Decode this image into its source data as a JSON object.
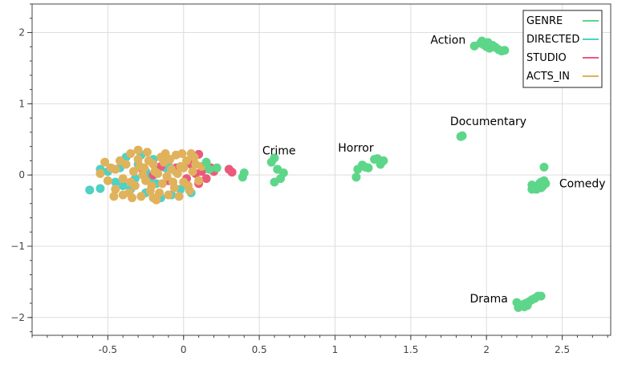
{
  "chart_data": {
    "type": "scatter",
    "title": "",
    "xlabel": "",
    "ylabel": "",
    "xlim": [
      -1.0,
      2.82
    ],
    "ylim": [
      -2.25,
      2.4
    ],
    "grid": true,
    "legend_position": "top-right",
    "x_ticks": [
      -0.5,
      0,
      0.5,
      1,
      1.5,
      2,
      2.5
    ],
    "x_tick_labels": [
      "-0.5",
      "0",
      "0.5",
      "1",
      "1.5",
      "2",
      "2.5"
    ],
    "y_ticks": [
      2,
      1,
      0,
      -1,
      -2
    ],
    "y_tick_labels": [
      "2",
      "1",
      "0",
      "−1",
      "−2"
    ],
    "series": [
      {
        "name": "DIRECTED",
        "color": "#4fd1c5",
        "points": [
          [
            -0.62,
            -0.21
          ],
          [
            -0.55,
            -0.19
          ],
          [
            -0.55,
            0.08
          ],
          [
            -0.5,
            0.05
          ],
          [
            -0.45,
            -0.1
          ],
          [
            -0.42,
            0.1
          ],
          [
            -0.38,
            0.25
          ],
          [
            -0.35,
            -0.2
          ],
          [
            -0.3,
            0.15
          ],
          [
            -0.25,
            -0.25
          ],
          [
            -0.2,
            0.22
          ],
          [
            -0.15,
            -0.32
          ],
          [
            -0.1,
            0.18
          ],
          [
            -0.08,
            -0.28
          ],
          [
            -0.05,
            0.05
          ],
          [
            -0.02,
            -0.2
          ],
          [
            0.05,
            -0.25
          ],
          [
            -0.25,
            0.05
          ],
          [
            -0.32,
            -0.05
          ],
          [
            -0.18,
            -0.12
          ],
          [
            -0.12,
            0.1
          ],
          [
            -0.4,
            -0.15
          ],
          [
            -0.28,
            0.28
          ],
          [
            -0.22,
            -0.05
          ]
        ]
      },
      {
        "name": "STUDIO",
        "color": "#ea5a7a",
        "points": [
          [
            0.1,
            0.29
          ],
          [
            0.12,
            0.05
          ],
          [
            0.1,
            -0.12
          ],
          [
            0.18,
            0.1
          ],
          [
            0.2,
            0.05
          ],
          [
            0.3,
            0.08
          ],
          [
            0.32,
            0.04
          ],
          [
            0.15,
            -0.05
          ],
          [
            0.05,
            0.15
          ],
          [
            -0.05,
            0.1
          ],
          [
            -0.15,
            0.12
          ],
          [
            -0.2,
            0.0
          ],
          [
            -0.28,
            0.1
          ],
          [
            0.02,
            -0.05
          ],
          [
            -0.1,
            -0.08
          ],
          [
            0.08,
            0.02
          ]
        ]
      },
      {
        "name": "ACTS_IN",
        "color": "#e0b25c",
        "points": [
          [
            -0.55,
            0.02
          ],
          [
            -0.5,
            -0.08
          ],
          [
            -0.48,
            0.1
          ],
          [
            -0.45,
            -0.2
          ],
          [
            -0.42,
            0.2
          ],
          [
            -0.4,
            -0.05
          ],
          [
            -0.38,
            0.15
          ],
          [
            -0.36,
            -0.25
          ],
          [
            -0.35,
            0.3
          ],
          [
            -0.33,
            0.05
          ],
          [
            -0.32,
            -0.15
          ],
          [
            -0.3,
            0.22
          ],
          [
            -0.28,
            -0.3
          ],
          [
            -0.26,
            0.1
          ],
          [
            -0.25,
            -0.08
          ],
          [
            -0.24,
            0.32
          ],
          [
            -0.22,
            -0.22
          ],
          [
            -0.2,
            0.15
          ],
          [
            -0.18,
            -0.35
          ],
          [
            -0.17,
            0.02
          ],
          [
            -0.15,
            0.25
          ],
          [
            -0.14,
            -0.12
          ],
          [
            -0.12,
            0.3
          ],
          [
            -0.1,
            -0.28
          ],
          [
            -0.08,
            0.08
          ],
          [
            -0.06,
            -0.18
          ],
          [
            -0.05,
            0.28
          ],
          [
            -0.03,
            -0.3
          ],
          [
            -0.02,
            0.12
          ],
          [
            0.0,
            -0.1
          ],
          [
            0.02,
            0.2
          ],
          [
            0.04,
            -0.22
          ],
          [
            0.06,
            0.05
          ],
          [
            0.08,
            0.15
          ],
          [
            0.1,
            -0.08
          ],
          [
            0.12,
            0.12
          ],
          [
            -0.45,
            0.08
          ],
          [
            -0.4,
            -0.28
          ],
          [
            -0.35,
            -0.1
          ],
          [
            -0.3,
            0.35
          ],
          [
            -0.27,
            0.0
          ],
          [
            -0.23,
            0.2
          ],
          [
            -0.21,
            -0.15
          ],
          [
            -0.19,
            0.05
          ],
          [
            -0.16,
            -0.25
          ],
          [
            -0.13,
            0.18
          ],
          [
            -0.11,
            -0.02
          ],
          [
            -0.09,
            0.22
          ],
          [
            -0.07,
            -0.1
          ],
          [
            -0.04,
            0.02
          ],
          [
            -0.01,
            0.3
          ],
          [
            0.03,
            -0.15
          ],
          [
            0.07,
            0.25
          ],
          [
            0.0,
            0.1
          ],
          [
            -0.52,
            0.18
          ],
          [
            -0.46,
            -0.3
          ],
          [
            -0.34,
            -0.32
          ],
          [
            -0.29,
            0.12
          ],
          [
            -0.2,
            -0.32
          ],
          [
            0.05,
            0.3
          ]
        ]
      },
      {
        "name": "GENRE",
        "color": "#5ed68a",
        "points": [
          [
            0.15,
            0.18
          ],
          [
            0.17,
            0.08
          ],
          [
            0.22,
            0.1
          ],
          [
            0.4,
            0.03
          ],
          [
            0.39,
            -0.03
          ],
          [
            0.58,
            0.18
          ],
          [
            0.6,
            0.24
          ],
          [
            0.6,
            -0.1
          ],
          [
            0.62,
            0.08
          ],
          [
            0.64,
            -0.05
          ],
          [
            0.66,
            0.03
          ],
          [
            1.14,
            -0.03
          ],
          [
            1.15,
            0.08
          ],
          [
            1.18,
            0.14
          ],
          [
            1.2,
            0.11
          ],
          [
            1.22,
            0.1
          ],
          [
            1.26,
            0.22
          ],
          [
            1.28,
            0.23
          ],
          [
            1.3,
            0.15
          ],
          [
            1.32,
            0.2
          ],
          [
            1.84,
            0.55
          ],
          [
            1.83,
            0.54
          ],
          [
            2.3,
            -0.2
          ],
          [
            2.3,
            -0.14
          ],
          [
            2.32,
            -0.18
          ],
          [
            2.34,
            -0.15
          ],
          [
            2.35,
            -0.12
          ],
          [
            2.36,
            -0.1
          ],
          [
            2.37,
            -0.16
          ],
          [
            2.38,
            -0.08
          ],
          [
            2.38,
            0.11
          ],
          [
            2.39,
            -0.12
          ],
          [
            2.36,
            -0.18
          ],
          [
            2.33,
            -0.2
          ],
          [
            1.92,
            1.81
          ],
          [
            1.96,
            1.85
          ],
          [
            1.98,
            1.83
          ],
          [
            2.0,
            1.8
          ],
          [
            2.02,
            1.78
          ],
          [
            2.04,
            1.82
          ],
          [
            2.06,
            1.79
          ],
          [
            2.08,
            1.76
          ],
          [
            2.1,
            1.74
          ],
          [
            2.12,
            1.75
          ],
          [
            1.97,
            1.88
          ],
          [
            2.01,
            1.86
          ],
          [
            2.05,
            1.8
          ],
          [
            2.2,
            -1.79
          ],
          [
            2.21,
            -1.86
          ],
          [
            2.22,
            -1.84
          ],
          [
            2.24,
            -1.82
          ],
          [
            2.26,
            -1.8
          ],
          [
            2.28,
            -1.78
          ],
          [
            2.3,
            -1.75
          ],
          [
            2.32,
            -1.73
          ],
          [
            2.34,
            -1.7
          ],
          [
            2.36,
            -1.7
          ],
          [
            2.27,
            -1.83
          ],
          [
            2.25,
            -1.85
          ]
        ]
      }
    ],
    "annotations": [
      {
        "text": "Crime",
        "x": 0.52,
        "y": 0.29
      },
      {
        "text": "Horror",
        "x": 1.02,
        "y": 0.33
      },
      {
        "text": "Documentary",
        "x": 1.76,
        "y": 0.7
      },
      {
        "text": "Action",
        "x": 1.63,
        "y": 1.84
      },
      {
        "text": "Comedy",
        "x": 2.48,
        "y": -0.17
      },
      {
        "text": "Drama",
        "x": 1.89,
        "y": -1.79
      }
    ],
    "legend": [
      {
        "name": "GENRE",
        "color": "#5ed68a"
      },
      {
        "name": "DIRECTED",
        "color": "#4fd1c5"
      },
      {
        "name": "STUDIO",
        "color": "#ea5a7a"
      },
      {
        "name": "ACTS_IN",
        "color": "#e0b25c"
      }
    ]
  }
}
